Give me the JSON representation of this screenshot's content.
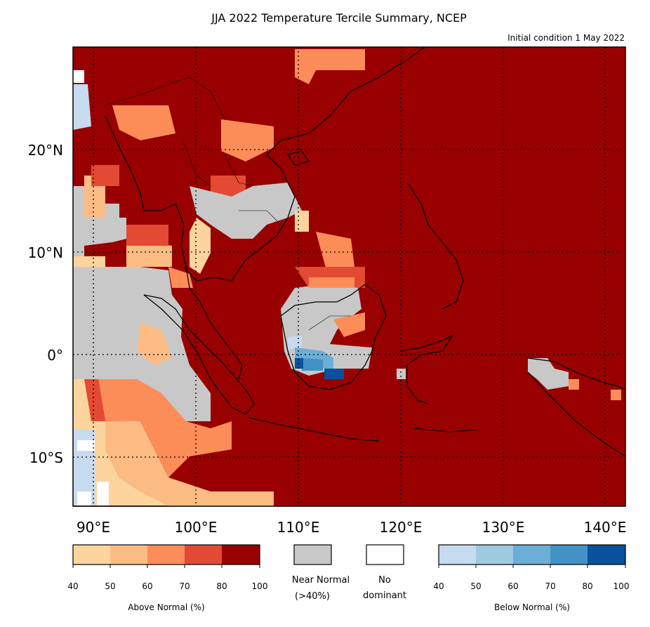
{
  "title": "JJA 2022 Temperature Tercile Summary, NCEP",
  "subtitle": "Initial condition 1 May 2022",
  "map": {
    "lon_range": [
      88,
      142
    ],
    "lat_range": [
      -15,
      30
    ],
    "lon_ticks": [
      "90°E",
      "100°E",
      "110°E",
      "120°E",
      "130°E",
      "140°E"
    ],
    "lat_ticks": [
      "20°N",
      "10°N",
      "0°",
      "10°S"
    ],
    "grid": "dotted",
    "colors": {
      "above_40": "#fdd49e",
      "above_50": "#fdbb84",
      "above_60": "#fc8d59",
      "above_70": "#e34a33",
      "above_80": "#990000",
      "near_normal": "#c8c8c8",
      "no_dominant": "#ffffff",
      "below_40": "#c6dbef",
      "below_50": "#9ecae1",
      "below_60": "#6baed6",
      "below_70": "#4292c6",
      "below_80": "#08519c"
    }
  },
  "legend": {
    "above": {
      "label": "Above Normal (%)",
      "ticks": [
        "40",
        "50",
        "60",
        "70",
        "80",
        "100"
      ]
    },
    "near_normal": {
      "label_line1": "Near Normal",
      "label_line2": "(>40%)"
    },
    "no_dominant": {
      "label_line1": "No",
      "label_line2": "dominant"
    },
    "below": {
      "label": "Below Normal (%)",
      "ticks": [
        "40",
        "50",
        "60",
        "70",
        "80",
        "100"
      ]
    }
  }
}
